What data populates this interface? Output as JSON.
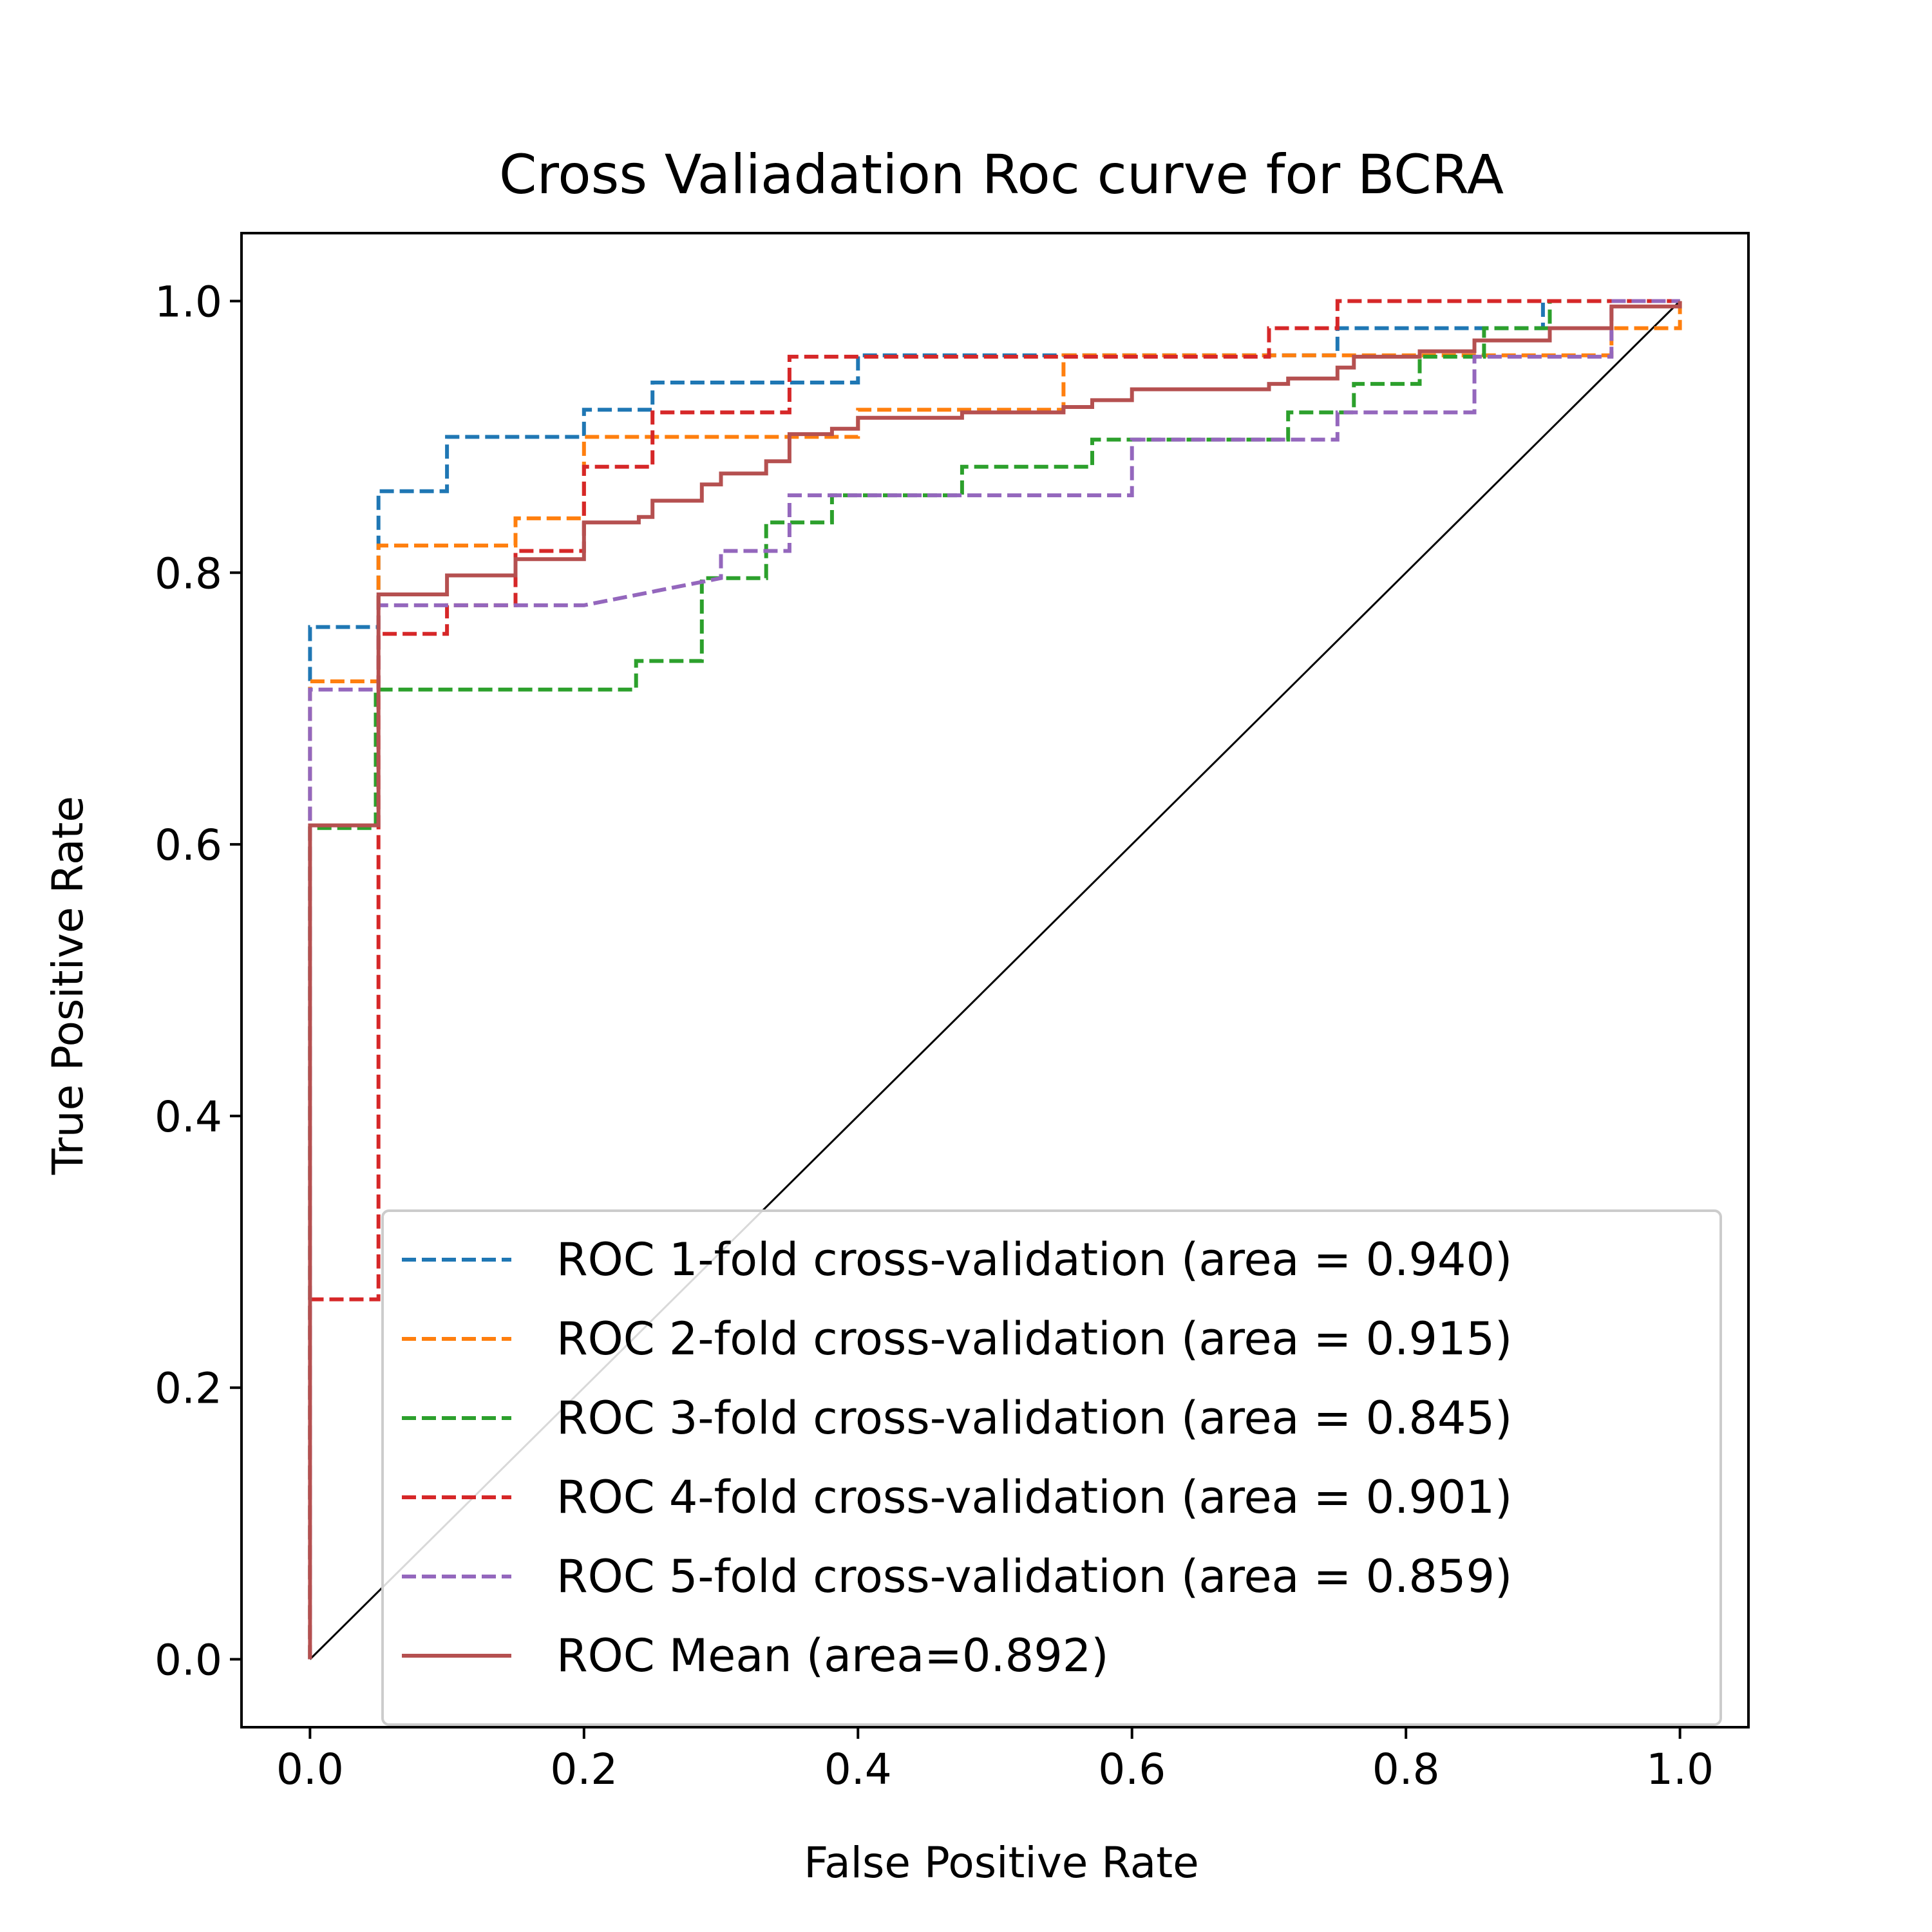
{
  "chart_data": {
    "type": "line",
    "title": "Cross Valiadation Roc curve for BCRA",
    "xlabel": "False Positive Rate",
    "ylabel": "True Positive Rate",
    "xlim": [
      -0.05,
      1.05
    ],
    "ylim": [
      -0.05,
      1.05
    ],
    "xticks": [
      "0.0",
      "0.2",
      "0.4",
      "0.6",
      "0.8",
      "1.0"
    ],
    "yticks": [
      "0.0",
      "0.2",
      "0.4",
      "0.6",
      "0.8",
      "1.0"
    ],
    "grid": false,
    "legend_position": "lower-right",
    "series": [
      {
        "name": "ROC 1-fold cross-validation (area = 0.940)",
        "color": "#1f77b4",
        "style": "dashed",
        "x": [
          0,
          0,
          0.05,
          0.05,
          0.1,
          0.1,
          0.2,
          0.2,
          0.25,
          0.25,
          0.4,
          0.4,
          0.75,
          0.75,
          0.9,
          0.9,
          1
        ],
        "y": [
          0,
          0.76,
          0.76,
          0.86,
          0.86,
          0.9,
          0.9,
          0.92,
          0.92,
          0.94,
          0.94,
          0.96,
          0.96,
          0.98,
          0.98,
          1,
          1
        ]
      },
      {
        "name": "ROC 2-fold cross-validation (area = 0.915)",
        "color": "#ff7f0e",
        "style": "dashed",
        "x": [
          0,
          0,
          0.05,
          0.05,
          0.15,
          0.15,
          0.2,
          0.2,
          0.4,
          0.4,
          0.55,
          0.55,
          0.95,
          0.95,
          1,
          1
        ],
        "y": [
          0,
          0.72,
          0.72,
          0.82,
          0.82,
          0.84,
          0.84,
          0.9,
          0.9,
          0.92,
          0.92,
          0.96,
          0.96,
          0.98,
          0.98,
          1
        ]
      },
      {
        "name": "ROC 3-fold cross-validation (area = 0.845)",
        "color": "#2ca02c",
        "style": "dashed",
        "x": [
          0,
          0,
          0.048,
          0.048,
          0.238,
          0.238,
          0.286,
          0.286,
          0.333,
          0.333,
          0.381,
          0.381,
          0.476,
          0.476,
          0.571,
          0.571,
          0.714,
          0.714,
          0.762,
          0.762,
          0.81,
          0.81,
          0.857,
          0.857,
          0.905,
          0.905,
          1
        ],
        "y": [
          0,
          0.612,
          0.612,
          0.714,
          0.714,
          0.735,
          0.735,
          0.796,
          0.796,
          0.837,
          0.837,
          0.857,
          0.857,
          0.878,
          0.878,
          0.898,
          0.898,
          0.918,
          0.918,
          0.939,
          0.939,
          0.959,
          0.959,
          0.98,
          0.98,
          1,
          1
        ]
      },
      {
        "name": "ROC 4-fold cross-validation (area = 0.901)",
        "color": "#d62728",
        "style": "dashed",
        "x": [
          0,
          0,
          0.05,
          0.05,
          0.1,
          0.1,
          0.15,
          0.15,
          0.2,
          0.2,
          0.25,
          0.25,
          0.35,
          0.35,
          0.7,
          0.7,
          0.75,
          0.75,
          1
        ],
        "y": [
          0,
          0.265,
          0.265,
          0.755,
          0.755,
          0.776,
          0.776,
          0.816,
          0.816,
          0.878,
          0.878,
          0.918,
          0.918,
          0.959,
          0.959,
          0.98,
          0.98,
          1,
          1
        ]
      },
      {
        "name": "ROC 5-fold cross-validation (area = 0.859)",
        "color": "#9467bd",
        "style": "dashed",
        "x": [
          0,
          0,
          0.05,
          0.05,
          0.2,
          0.2,
          0.3,
          0.3,
          0.35,
          0.35,
          0.45,
          0.45,
          0.6,
          0.6,
          0.75,
          0.75,
          0.85,
          0.85,
          0.95,
          0.95,
          1
        ],
        "y": [
          0,
          0.714,
          0.714,
          0.776,
          0.776,
          0.776,
          0.796,
          0.816,
          0.816,
          0.857,
          0.857,
          0.857,
          0.857,
          0.898,
          0.898,
          0.918,
          0.918,
          0.959,
          0.959,
          1,
          1
        ]
      },
      {
        "name": "ROC Mean (area=0.892)",
        "color": "#b55050",
        "style": "solid",
        "x": [
          0,
          0,
          0.05,
          0.05,
          0.1,
          0.1,
          0.15,
          0.15,
          0.2,
          0.2,
          0.24,
          0.24,
          0.25,
          0.25,
          0.286,
          0.286,
          0.3,
          0.3,
          0.333,
          0.333,
          0.35,
          0.35,
          0.381,
          0.381,
          0.4,
          0.4,
          0.45,
          0.45,
          0.476,
          0.476,
          0.55,
          0.55,
          0.571,
          0.571,
          0.6,
          0.6,
          0.7,
          0.7,
          0.714,
          0.714,
          0.75,
          0.75,
          0.762,
          0.762,
          0.81,
          0.81,
          0.85,
          0.85,
          0.905,
          0.905,
          0.95,
          0.95,
          1,
          1
        ],
        "y": [
          0,
          0.614,
          0.614,
          0.784,
          0.784,
          0.798,
          0.798,
          0.81,
          0.81,
          0.837,
          0.837,
          0.841,
          0.841,
          0.853,
          0.853,
          0.865,
          0.865,
          0.873,
          0.873,
          0.882,
          0.882,
          0.902,
          0.902,
          0.906,
          0.906,
          0.914,
          0.914,
          0.914,
          0.914,
          0.918,
          0.918,
          0.922,
          0.922,
          0.927,
          0.927,
          0.935,
          0.935,
          0.939,
          0.939,
          0.943,
          0.943,
          0.951,
          0.951,
          0.959,
          0.959,
          0.963,
          0.963,
          0.971,
          0.971,
          0.98,
          0.98,
          0.996,
          0.996,
          1
        ]
      },
      {
        "name": "",
        "color": "#000000",
        "style": "solid",
        "x": [
          0,
          1
        ],
        "y": [
          0,
          1
        ]
      }
    ]
  }
}
